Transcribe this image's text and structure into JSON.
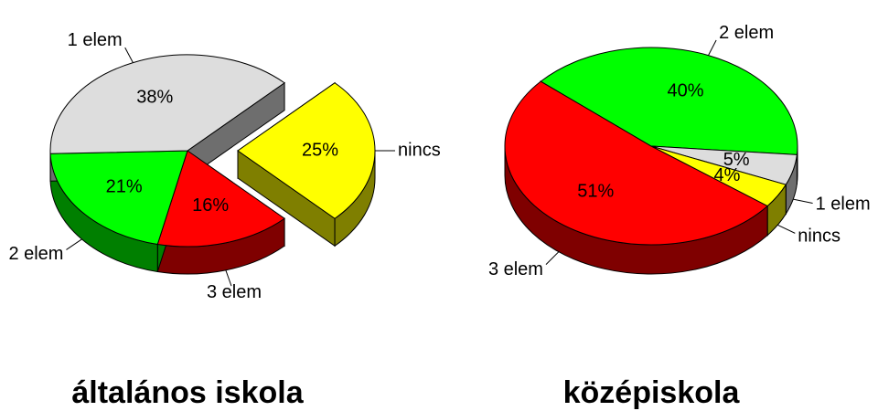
{
  "chart_data": [
    {
      "type": "pie",
      "title": "általános iskola",
      "categories": [
        "nincs",
        "3 elem",
        "2 elem",
        "1 elem"
      ],
      "values": [
        25,
        16,
        21,
        38
      ],
      "value_labels": [
        "25%",
        "16%",
        "21%",
        "38%"
      ],
      "colors": [
        "#ffff00",
        "#ff0000",
        "#00ff00",
        "#dddddd"
      ]
    },
    {
      "type": "pie",
      "title": "középiskola",
      "categories": [
        "2 elem",
        "1 elem",
        "nincs",
        "3 elem"
      ],
      "values": [
        40,
        5,
        4,
        51
      ],
      "value_labels": [
        "40%",
        "5%",
        "4%",
        "51%"
      ],
      "colors": [
        "#00ff00",
        "#dddddd",
        "#ffff00",
        "#ff0000"
      ]
    }
  ]
}
